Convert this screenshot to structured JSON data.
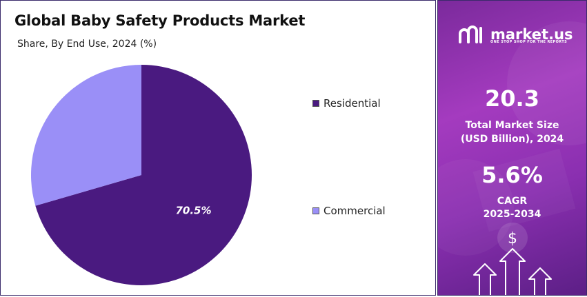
{
  "chart_data": {
    "type": "pie",
    "title": "Global Baby Safety Products Market",
    "subtitle": "Share, By End Use, 2024 (%)",
    "categories": [
      "Residential",
      "Commercial"
    ],
    "values": [
      70.5,
      29.5
    ],
    "data_labels": [
      "70.5%",
      ""
    ],
    "colors": [
      "#4a1a80",
      "#9a8ff7"
    ],
    "legend_position": "right"
  },
  "brand": {
    "name": "market.us",
    "tagline": "ONE STOP SHOP FOR THE REPORTS"
  },
  "stats": {
    "market_size": {
      "value": "20.3",
      "label_line1": "Total Market Size",
      "label_line2": "(USD Billion), 2024"
    },
    "cagr": {
      "value": "5.6%",
      "label_line1": "CAGR",
      "label_line2": "2025-2034"
    }
  },
  "icons": {
    "brand_logo": "market-us-logo-icon",
    "dollar": "dollar-sign-icon",
    "growth": "growth-arrows-icon"
  }
}
